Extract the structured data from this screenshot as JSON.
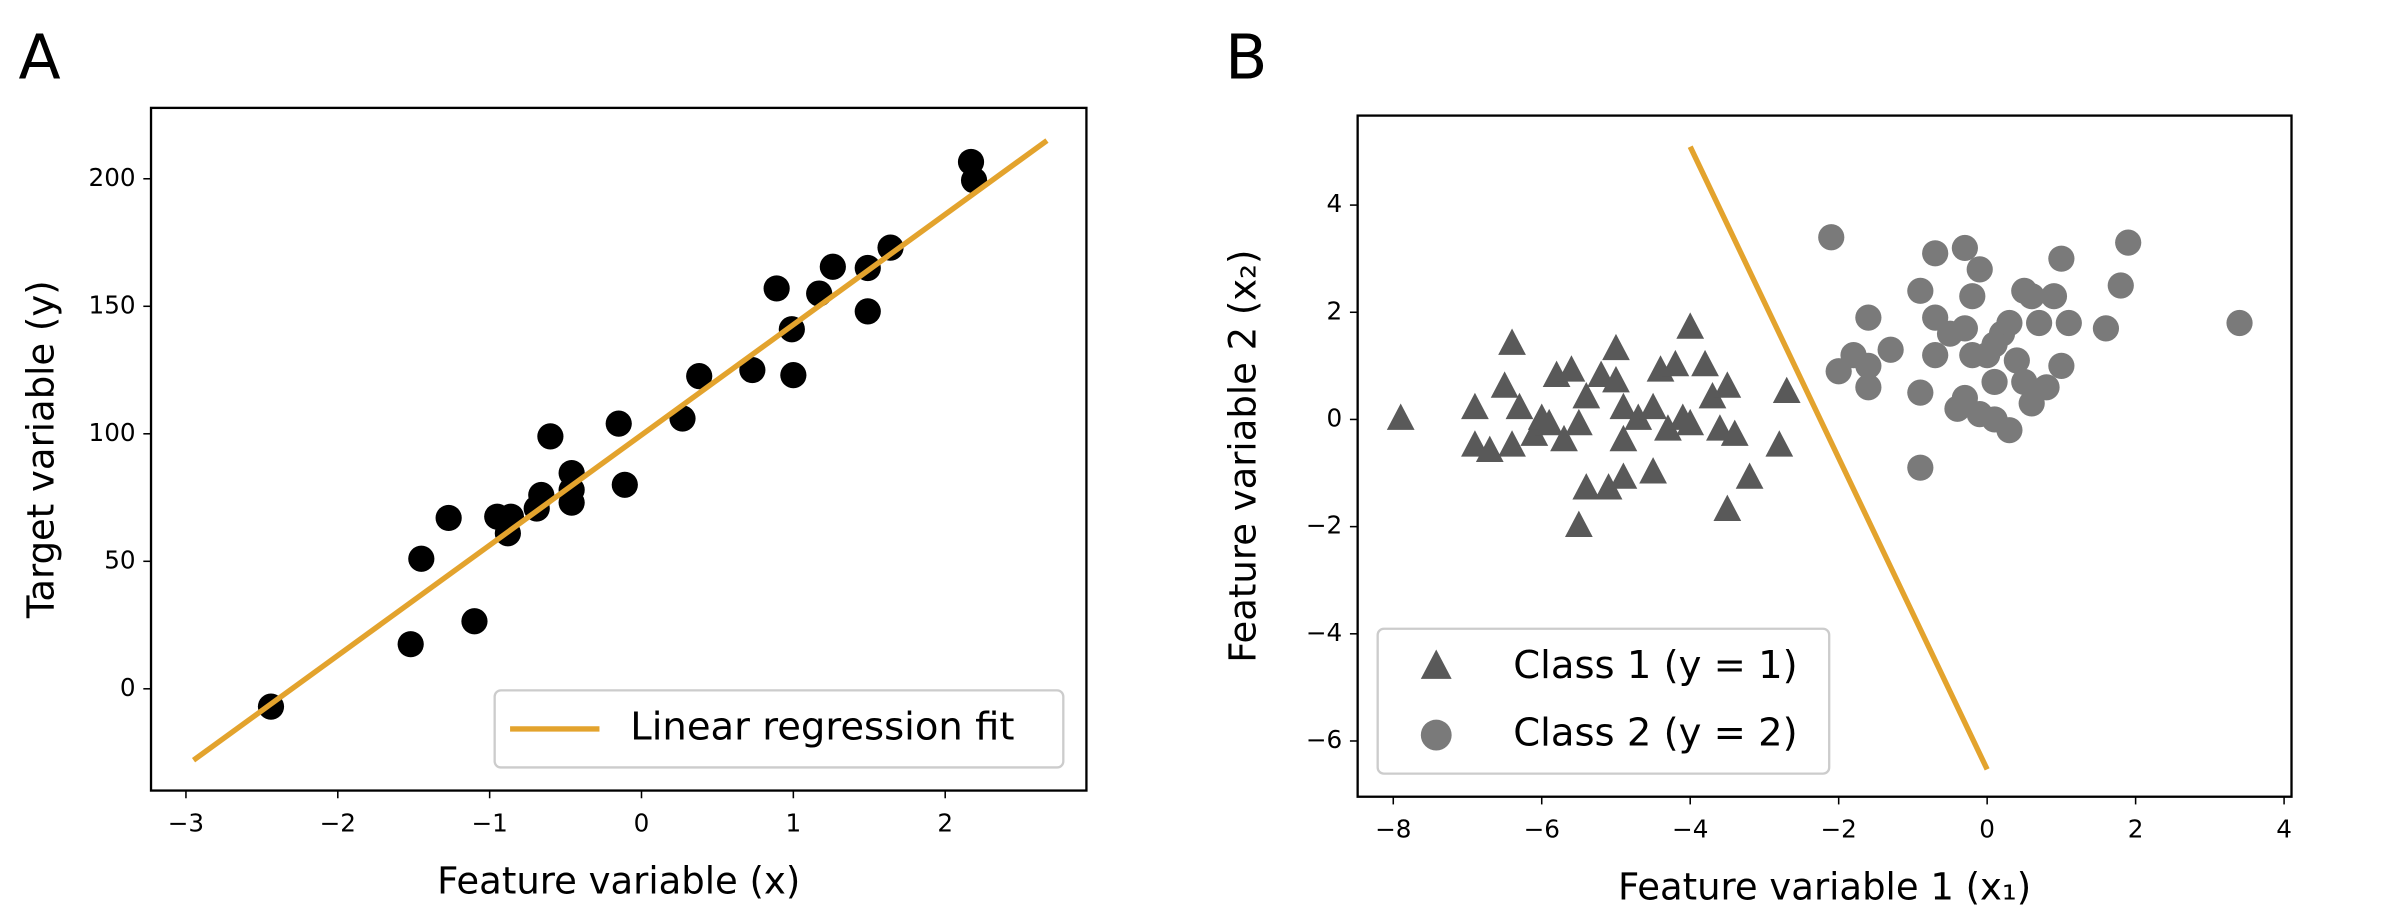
{
  "chart_data": [
    {
      "type": "scatter",
      "panel_label": "A",
      "xlabel": "Feature variable (x)",
      "ylabel": "Target variable (y)",
      "xlim": [
        -3.23,
        2.93
      ],
      "ylim": [
        -39.9,
        227.8
      ],
      "xticks": [
        {
          "value": -3,
          "label": "−3"
        },
        {
          "value": -2,
          "label": "−2"
        },
        {
          "value": -1,
          "label": "−1"
        },
        0,
        1,
        2
      ],
      "yticks": [
        0,
        50,
        100,
        150,
        200
      ],
      "legend": "lower right",
      "series": [
        {
          "type": "scatter",
          "marker": "circle",
          "color": "#000000",
          "x": [
            -2.44,
            -1.52,
            -1.45,
            -1.27,
            -1.1,
            -0.95,
            -0.86,
            -0.88,
            -0.66,
            -0.69,
            -0.6,
            -0.46,
            -0.46,
            -0.46,
            -0.15,
            -0.11,
            0.27,
            0.38,
            0.73,
            0.89,
            0.99,
            1.0,
            1.17,
            1.26,
            1.49,
            1.49,
            1.64,
            2.17,
            2.19
          ],
          "values": [
            -7,
            17.5,
            51,
            67,
            26.5,
            67.5,
            67.5,
            61,
            76,
            70.7,
            99,
            84.6,
            78,
            73,
            104,
            80,
            106,
            122.6,
            125,
            157,
            141,
            123,
            155,
            165.5,
            148,
            165,
            173,
            206.6,
            199.4
          ]
        },
        {
          "type": "line",
          "name": "Linear regression fit",
          "color": "#e3a32d",
          "x": [
            -2.95,
            2.67
          ],
          "values": [
            -28,
            215
          ]
        }
      ]
    },
    {
      "type": "scatter",
      "panel_label": "B",
      "xlabel": "Feature variable 1 (x₁)",
      "ylabel": "Feature variable 2 (x₂)",
      "xlim": [
        -8.48,
        4.1
      ],
      "ylim": [
        -7.04,
        5.67
      ],
      "xticks": [
        {
          "value": -8,
          "label": "−8"
        },
        {
          "value": -6,
          "label": "−6"
        },
        {
          "value": -4,
          "label": "−4"
        },
        {
          "value": -2,
          "label": "−2"
        },
        0,
        2,
        4
      ],
      "yticks": [
        {
          "value": -6,
          "label": "−6"
        },
        {
          "value": -4,
          "label": "−4"
        },
        {
          "value": -2,
          "label": "−2"
        },
        0,
        2,
        4
      ],
      "legend": "lower left",
      "series": [
        {
          "type": "scatter",
          "marker": "triangle",
          "name": "Class 1 (y = 1)",
          "color": "#595959",
          "x": [
            -7.9,
            -6.9,
            -6.9,
            -6.7,
            -6.5,
            -6.4,
            -6.3,
            -6.4,
            -6.1,
            -6.0,
            -5.9,
            -5.8,
            -5.7,
            -5.6,
            -5.5,
            -5.5,
            -5.4,
            -5.4,
            -5.2,
            -5.1,
            -5.0,
            -5.0,
            -4.9,
            -4.9,
            -4.9,
            -4.7,
            -4.5,
            -4.5,
            -4.4,
            -4.3,
            -4.2,
            -4.1,
            -4.0,
            -4.0,
            -3.8,
            -3.7,
            -3.6,
            -3.5,
            -3.5,
            -3.4,
            -3.2,
            -2.8,
            -2.7
          ],
          "values": [
            0,
            0.2,
            -0.5,
            -0.6,
            0.6,
            1.4,
            0.2,
            -0.5,
            -0.3,
            0,
            -0.1,
            0.8,
            -0.4,
            0.9,
            -0.1,
            -2.0,
            0.4,
            -1.3,
            0.8,
            -1.3,
            0.7,
            1.3,
            0.2,
            -0.4,
            -1.1,
            0,
            -1.0,
            0.2,
            0.9,
            -0.2,
            1.0,
            0,
            1.7,
            -0.1,
            1.0,
            0.4,
            -0.2,
            0.6,
            -1.7,
            -0.3,
            -1.1,
            -0.5,
            0.5
          ]
        },
        {
          "type": "scatter",
          "marker": "circle",
          "name": "Class 2 (y = 2)",
          "color": "#7a7a7a",
          "x": [
            -2.1,
            -2.0,
            -1.8,
            -1.6,
            -1.6,
            -1.6,
            -1.3,
            -0.9,
            -0.9,
            -0.9,
            -0.7,
            -0.7,
            -0.7,
            -0.5,
            -0.4,
            -0.3,
            -0.3,
            -0.3,
            -0.2,
            -0.1,
            -0.1,
            0,
            0.1,
            0.1,
            0.2,
            0.3,
            0.3,
            0.4,
            0.5,
            0.6,
            0.6,
            0.5,
            0.7,
            0.8,
            0.9,
            1.0,
            1.0,
            1.1,
            1.6,
            1.8,
            1.9,
            3.4,
            0.1,
            -0.2
          ],
          "values": [
            3.4,
            0.9,
            1.2,
            0.6,
            1.0,
            1.9,
            1.3,
            -0.9,
            0.5,
            2.4,
            3.1,
            1.9,
            1.2,
            1.6,
            0.2,
            0.4,
            1.7,
            3.2,
            2.3,
            2.8,
            0.1,
            1.2,
            1.4,
            0,
            1.6,
            -0.2,
            1.8,
            1.1,
            0.7,
            2.3,
            0.3,
            2.4,
            1.8,
            0.6,
            2.3,
            3.0,
            1.0,
            1.8,
            1.7,
            2.5,
            3.3,
            1.8,
            0.7,
            1.2
          ]
        },
        {
          "type": "line",
          "color": "#e3a32d",
          "x": [
            -4,
            0
          ],
          "values": [
            5.09,
            -6.53
          ]
        }
      ]
    }
  ]
}
